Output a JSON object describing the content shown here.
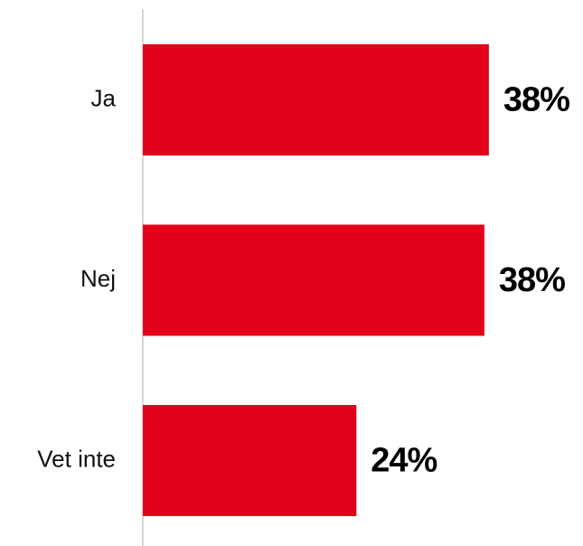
{
  "chart_data": {
    "type": "bar",
    "orientation": "horizontal",
    "categories": [
      "Ja",
      "Nej",
      "Vet inte"
    ],
    "values": [
      38.4,
      37.9,
      23.7
    ],
    "value_labels": [
      "38%",
      "38%",
      "24%"
    ],
    "color": "#e2001a"
  }
}
